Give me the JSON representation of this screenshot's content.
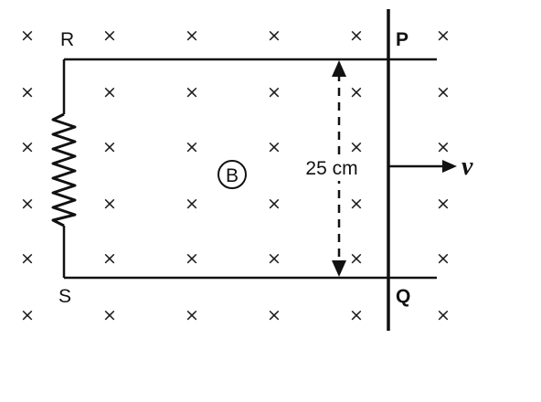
{
  "labels": {
    "R": "R",
    "S": "S",
    "P": "P",
    "Q": "Q",
    "field": "B",
    "distance": "25 cm",
    "velocity": "v"
  },
  "field": {
    "symbol_icon": "cross-into-page-icon",
    "rows": 6,
    "columns": 6
  },
  "colors": {
    "ink": "#111111"
  }
}
